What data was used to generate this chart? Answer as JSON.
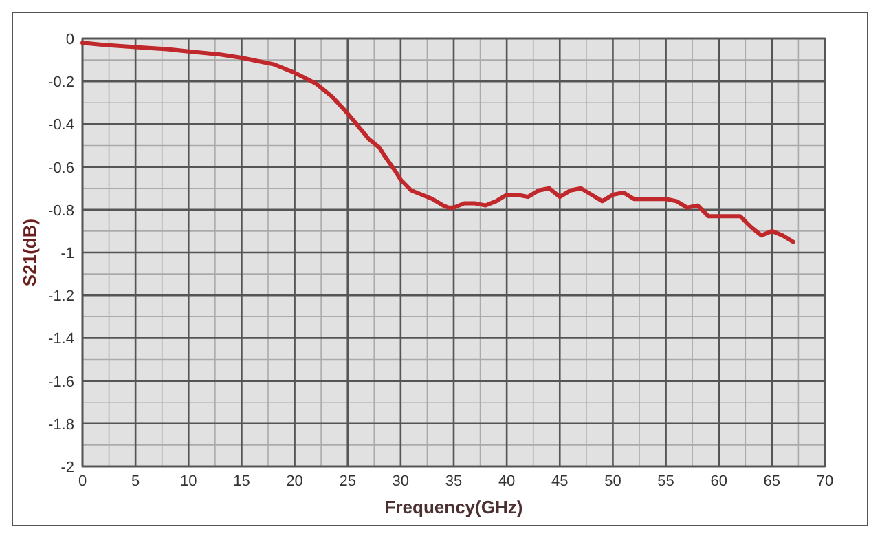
{
  "chart_data": {
    "type": "line",
    "xlabel": "Frequency(GHz)",
    "ylabel": "S21(dB)",
    "xlim": [
      0,
      70
    ],
    "xticks": [
      0,
      5,
      10,
      15,
      20,
      25,
      30,
      35,
      40,
      45,
      50,
      55,
      60,
      65,
      70
    ],
    "ylim": [
      -2,
      0
    ],
    "yticks": [
      0,
      -0.2,
      -0.4,
      -0.6,
      -0.8,
      -1,
      -1.2,
      -1.4,
      -1.6,
      -1.8,
      -2
    ],
    "grid": true,
    "marker": "none",
    "line_style": "solid",
    "series": [
      {
        "color": "#c0282c",
        "x": [
          0,
          2,
          5,
          8,
          10,
          13,
          15,
          17,
          18,
          20,
          22,
          23.5,
          25,
          26,
          27,
          28,
          28.5,
          29.5,
          30,
          31,
          32,
          33,
          34,
          34.5,
          35,
          36,
          37,
          38,
          39,
          40,
          41,
          42,
          43,
          44,
          45,
          46,
          47,
          48,
          49,
          50,
          51,
          52,
          53,
          54,
          55,
          56,
          57,
          58,
          59,
          60,
          61,
          62,
          63,
          64,
          65,
          66,
          67
        ],
        "values": [
          -0.02,
          -0.03,
          -0.04,
          -0.05,
          -0.06,
          -0.075,
          -0.09,
          -0.11,
          -0.12,
          -0.16,
          -0.21,
          -0.27,
          -0.35,
          -0.41,
          -0.47,
          -0.51,
          -0.55,
          -0.62,
          -0.66,
          -0.71,
          -0.73,
          -0.75,
          -0.78,
          -0.79,
          -0.79,
          -0.77,
          -0.77,
          -0.78,
          -0.76,
          -0.73,
          -0.73,
          -0.74,
          -0.71,
          -0.7,
          -0.74,
          -0.71,
          -0.7,
          -0.73,
          -0.76,
          -0.73,
          -0.72,
          -0.75,
          -0.75,
          -0.75,
          -0.75,
          -0.76,
          -0.79,
          -0.78,
          -0.83,
          -0.83,
          -0.83,
          -0.83,
          -0.88,
          -0.92,
          -0.9,
          -0.92,
          -0.95
        ]
      }
    ]
  }
}
